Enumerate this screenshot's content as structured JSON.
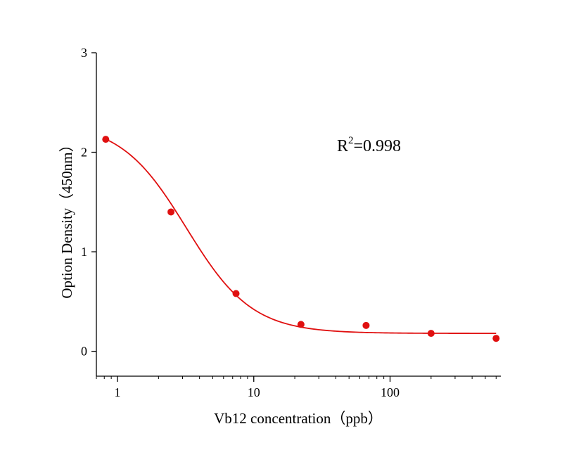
{
  "chart_data": {
    "type": "scatter",
    "title": "",
    "xlabel": "Vb12  concentration（ppb）",
    "ylabel": "Option Density（450nm）",
    "x_scale": "log",
    "xlim": [
      0.7,
      650
    ],
    "ylim": [
      -0.25,
      3
    ],
    "x_ticks": [
      1,
      10,
      100
    ],
    "x_tick_labels": [
      "1",
      "10",
      "100"
    ],
    "y_ticks": [
      0,
      1,
      2,
      3
    ],
    "y_tick_labels": [
      "0",
      "1",
      "2",
      "3"
    ],
    "grid": false,
    "series": [
      {
        "type": "scatter",
        "x": [
          0.82,
          2.47,
          7.41,
          22.2,
          66.7,
          200,
          600
        ],
        "y": [
          2.13,
          1.4,
          0.58,
          0.27,
          0.26,
          0.18,
          0.13
        ]
      },
      {
        "type": "line",
        "fit": "four-parameter logistic",
        "params": {
          "top": 2.3,
          "bottom": 0.18,
          "ec50": 3.2,
          "slope": 1.8
        },
        "x_range": [
          0.82,
          600
        ]
      }
    ],
    "annotation": {
      "text_main": "R",
      "text_sup": "2",
      "text_rest": "=0.998"
    },
    "colors": {
      "series": "#e01010",
      "axis": "#000000"
    }
  }
}
